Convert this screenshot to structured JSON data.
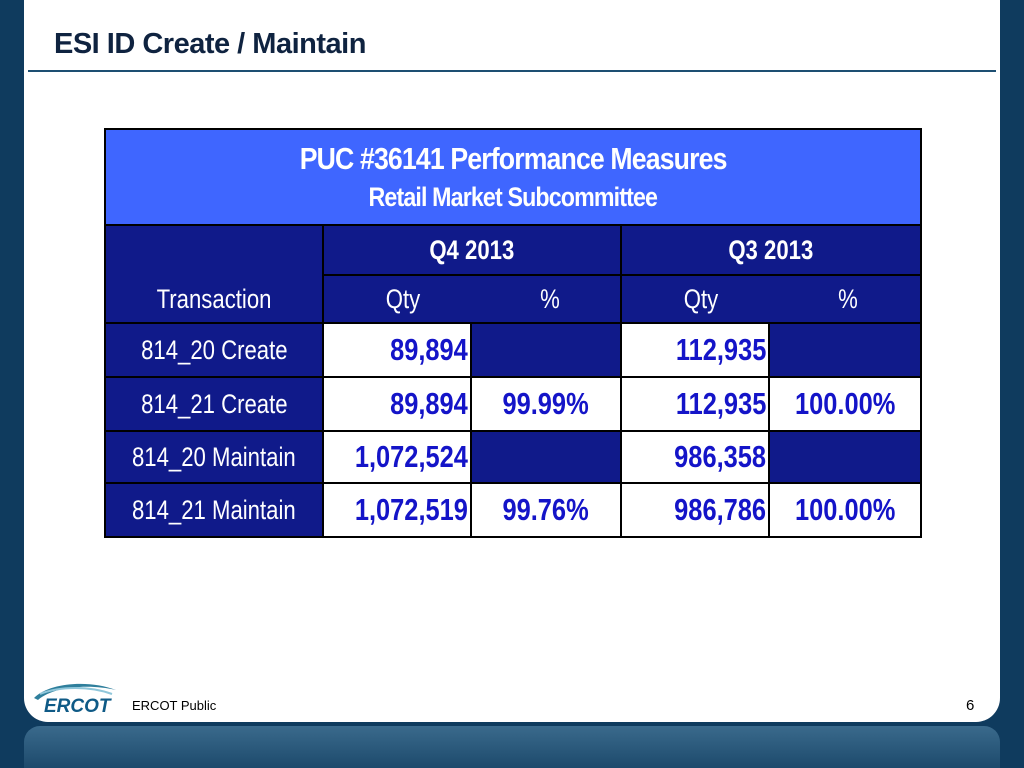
{
  "slide": {
    "title": "ESI ID Create / Maintain",
    "footer_label": "ERCOT Public",
    "page_number": "6",
    "logo_text": "ERCOT"
  },
  "table": {
    "title": "PUC #36141 Performance Measures",
    "subtitle": "Retail Market Subcommittee",
    "periods": [
      "Q4 2013",
      "Q3 2013"
    ],
    "row_header": "Transaction",
    "col_qty": "Qty",
    "col_pct": "%",
    "rows": [
      {
        "label": "814_20 Create",
        "q4_qty": "89,894",
        "q4_pct": "",
        "q3_qty": "112,935",
        "q3_pct": ""
      },
      {
        "label": "814_21 Create",
        "q4_qty": "89,894",
        "q4_pct": "99.99%",
        "q3_qty": "112,935",
        "q3_pct": "100.00%"
      },
      {
        "label": "814_20 Maintain",
        "q4_qty": "1,072,524",
        "q4_pct": "",
        "q3_qty": "986,358",
        "q3_pct": ""
      },
      {
        "label": "814_21 Maintain",
        "q4_qty": "1,072,519",
        "q4_pct": "99.76%",
        "q3_qty": "986,786",
        "q3_pct": "100.00%"
      }
    ]
  },
  "colors": {
    "header_blue": "#3f66ff",
    "navy": "#101a8a",
    "value_blue": "#1414c8",
    "frame": "#0f3b5e"
  }
}
